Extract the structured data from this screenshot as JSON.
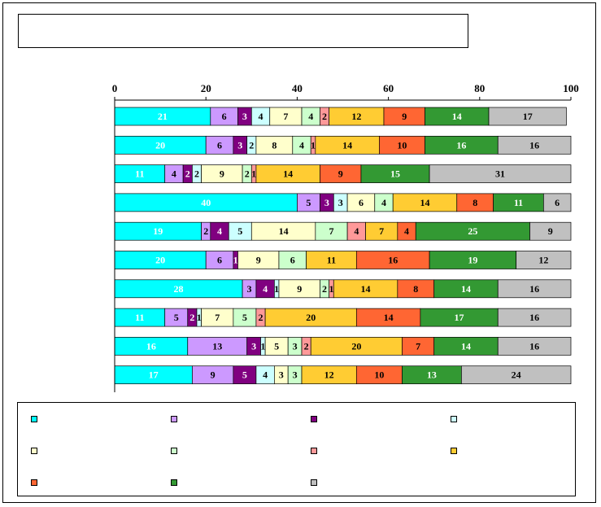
{
  "chart_data": {
    "type": "bar",
    "orientation": "horizontal",
    "stacked": true,
    "title": "",
    "xlim": [
      0,
      100
    ],
    "x_ticks": [
      0,
      20,
      40,
      60,
      80,
      100
    ],
    "x_tick_position": "top",
    "categories": [
      "",
      "",
      "",
      "",
      "",
      "",
      "",
      "",
      "",
      ""
    ],
    "series": [
      {
        "color": "#00ffff",
        "label_color": "#ffffff",
        "values": [
          21,
          20,
          11,
          40,
          19,
          20,
          28,
          11,
          16,
          17
        ]
      },
      {
        "color": "#cc99ff",
        "label_color": "#000000",
        "values": [
          6,
          6,
          4,
          5,
          2,
          6,
          3,
          5,
          13,
          9
        ]
      },
      {
        "color": "#800080",
        "label_color": "#ffffff",
        "values": [
          3,
          3,
          2,
          3,
          4,
          1,
          4,
          2,
          3,
          5
        ]
      },
      {
        "color": "#ccffff",
        "label_color": "#000000",
        "values": [
          4,
          2,
          2,
          3,
          5,
          0,
          1,
          1,
          1,
          4
        ]
      },
      {
        "color": "#ffffcc",
        "label_color": "#000000",
        "values": [
          7,
          8,
          9,
          6,
          14,
          9,
          9,
          7,
          5,
          3
        ]
      },
      {
        "color": "#ccffcc",
        "label_color": "#000000",
        "values": [
          4,
          4,
          2,
          4,
          7,
          6,
          2,
          5,
          3,
          3
        ]
      },
      {
        "color": "#ff9999",
        "label_color": "#000000",
        "values": [
          2,
          1,
          1,
          0,
          4,
          0,
          1,
          2,
          2,
          0
        ]
      },
      {
        "color": "#ffcc33",
        "label_color": "#000000",
        "values": [
          12,
          14,
          14,
          14,
          7,
          11,
          14,
          20,
          20,
          12
        ]
      },
      {
        "color": "#ff6633",
        "label_color": "#000000",
        "values": [
          9,
          10,
          9,
          8,
          4,
          16,
          8,
          14,
          7,
          10
        ]
      },
      {
        "color": "#339933",
        "label_color": "#ffffff",
        "values": [
          14,
          16,
          15,
          11,
          25,
          19,
          14,
          17,
          14,
          13
        ]
      },
      {
        "color": "#c0c0c0",
        "label_color": "#000000",
        "values": [
          17,
          16,
          31,
          6,
          9,
          12,
          16,
          16,
          16,
          24
        ]
      }
    ],
    "legend": {
      "position": "bottom",
      "columns": 4
    }
  }
}
